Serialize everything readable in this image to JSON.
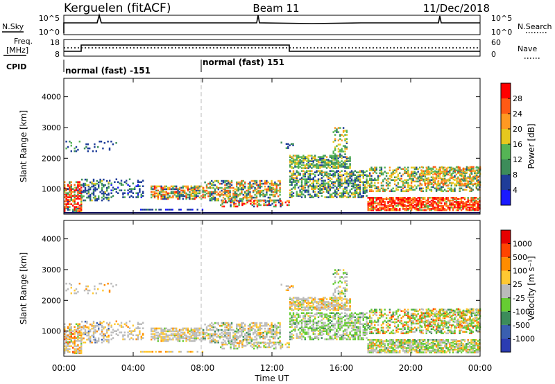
{
  "header": {
    "station": "Kerguelen (fitACF)",
    "beam": "Beam 11",
    "date": "11/Dec/2018"
  },
  "noise_panel": {
    "left_label": "N.Sky",
    "left_ticks": [
      "10^5",
      "10^0"
    ],
    "right_label": "N.Search",
    "right_ticks": [
      "10^5",
      "10^0"
    ]
  },
  "freq_panel": {
    "left_label_line1": "Freq.",
    "left_label_line2": "[MHz]",
    "left_ticks": [
      "18",
      "8"
    ],
    "right_label": "Nave",
    "right_ticks": [
      "60",
      "0"
    ]
  },
  "cpid": {
    "label": "CPID",
    "segments": [
      {
        "name": "normal (fast) -151"
      },
      {
        "name": "normal (fast) 151"
      }
    ]
  },
  "colors": {
    "power": [
      "#1a1aff",
      "#1f3d99",
      "#3c8c5a",
      "#55b455",
      "#e6c81e",
      "#ff9922",
      "#ff5a14",
      "#ff0000"
    ],
    "velocity": [
      "#2b3cb2",
      "#3a5fb0",
      "#3c8c5a",
      "#66cc33",
      "#bbbbbb",
      "#ffc832",
      "#ff8c00",
      "#ff4400",
      "#e60000"
    ]
  },
  "chart_data": [
    {
      "type": "heatmap",
      "title": "Power",
      "ylabel": "Slant Range [km]",
      "yticks": [
        "1000",
        "2000",
        "3000",
        "4000"
      ],
      "ylim": [
        180,
        4600
      ],
      "colorbar_label": "Power [dB]",
      "colorbar_ticks": [
        "4",
        "8",
        "12",
        "16",
        "20",
        "24",
        "28"
      ],
      "colorbar_range": [
        0,
        32
      ]
    },
    {
      "type": "heatmap",
      "title": "Velocity",
      "ylabel": "Slant Range [km]",
      "yticks": [
        "1000",
        "2000",
        "3000",
        "4000"
      ],
      "ylim": [
        180,
        4600
      ],
      "xlabel": "Time UT",
      "xticks": [
        "00:00",
        "04:00",
        "08:00",
        "12:00",
        "16:00",
        "20:00",
        "00:00"
      ],
      "xlim_hours": [
        0,
        24
      ],
      "colorbar_label": "Velocity [m s⁻¹]",
      "colorbar_ticks": [
        "1000",
        "500",
        "100",
        "25",
        "-25",
        "-100",
        "-500",
        "-1000"
      ]
    }
  ]
}
